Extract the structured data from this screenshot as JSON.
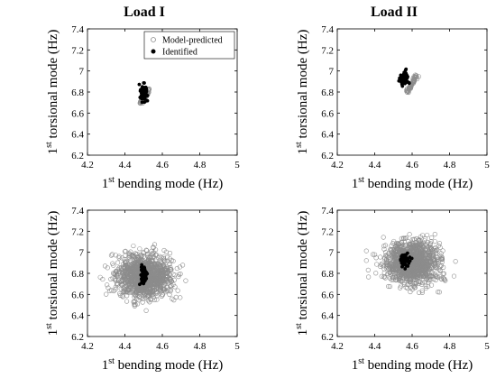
{
  "column_titles": [
    "Load I",
    "Load II"
  ],
  "chart_data": [
    {
      "type": "scatter",
      "title": "Load I",
      "xlabel_main": "1",
      "xlabel_sup": "st",
      "xlabel_rest": " bending mode (Hz)",
      "ylabel_main": "1",
      "ylabel_sup": "st",
      "ylabel_rest": " torsional mode (Hz)",
      "xlim": [
        4.2,
        5
      ],
      "ylim": [
        6.2,
        7.4
      ],
      "xticks": [
        "4.2",
        "4.4",
        "4.6",
        "4.8",
        "5"
      ],
      "yticks": [
        "6.2",
        "6.4",
        "6.6",
        "6.8",
        "7",
        "7.2",
        "7.4"
      ],
      "legend": {
        "position": "top-right",
        "entries": [
          "Model-predicted",
          "Identified"
        ]
      },
      "series": [
        {
          "name": "Model-predicted",
          "kind": "line-cluster",
          "x0": 4.485,
          "y0": 6.7,
          "x1": 4.53,
          "y1": 6.82,
          "count": 60,
          "spread": 0.004
        },
        {
          "name": "Identified",
          "kind": "cluster",
          "cx": 4.5,
          "cy": 6.79,
          "sx": 0.009,
          "sy": 0.04,
          "count": 70
        }
      ]
    },
    {
      "type": "scatter",
      "title": "Load II",
      "xlabel_main": "1",
      "xlabel_sup": "st",
      "xlabel_rest": " bending mode (Hz)",
      "ylabel_main": "1",
      "ylabel_sup": "st",
      "ylabel_rest": " torsional mode (Hz)",
      "xlim": [
        4.2,
        5
      ],
      "ylim": [
        6.2,
        7.4
      ],
      "xticks": [
        "4.2",
        "4.4",
        "4.6",
        "4.8",
        "5"
      ],
      "yticks": [
        "6.2",
        "6.4",
        "6.6",
        "6.8",
        "7",
        "7.2",
        "7.4"
      ],
      "series": [
        {
          "name": "Model-predicted",
          "kind": "line-cluster",
          "x0": 4.575,
          "y0": 6.8,
          "x1": 4.625,
          "y1": 6.96,
          "count": 60,
          "spread": 0.004
        },
        {
          "name": "Identified",
          "kind": "cluster",
          "cx": 4.56,
          "cy": 6.93,
          "sx": 0.012,
          "sy": 0.03,
          "count": 70
        }
      ]
    },
    {
      "type": "scatter",
      "xlabel_main": "1",
      "xlabel_sup": "st",
      "xlabel_rest": " bending mode (Hz)",
      "ylabel_main": "1",
      "ylabel_sup": "st",
      "ylabel_rest": " torsional mode (Hz)",
      "xlim": [
        4.2,
        5
      ],
      "ylim": [
        6.2,
        7.4
      ],
      "xticks": [
        "4.2",
        "4.4",
        "4.6",
        "4.8",
        "5"
      ],
      "yticks": [
        "6.2",
        "6.4",
        "6.6",
        "6.8",
        "7",
        "7.2",
        "7.4"
      ],
      "series": [
        {
          "name": "Model-predicted",
          "kind": "cluster",
          "cx": 4.5,
          "cy": 6.77,
          "sx": 0.075,
          "sy": 0.1,
          "count": 1300
        },
        {
          "name": "Identified",
          "kind": "cluster",
          "cx": 4.5,
          "cy": 6.79,
          "sx": 0.009,
          "sy": 0.04,
          "count": 70
        }
      ]
    },
    {
      "type": "scatter",
      "xlabel_main": "1",
      "xlabel_sup": "st",
      "xlabel_rest": " bending mode (Hz)",
      "ylabel_main": "1",
      "ylabel_sup": "st",
      "ylabel_rest": " torsional mode (Hz)",
      "xlim": [
        4.2,
        5
      ],
      "ylim": [
        6.2,
        7.4
      ],
      "xticks": [
        "4.2",
        "4.4",
        "4.6",
        "4.8",
        "5"
      ],
      "yticks": [
        "6.2",
        "6.4",
        "6.6",
        "6.8",
        "7",
        "7.2",
        "7.4"
      ],
      "series": [
        {
          "name": "Model-predicted",
          "kind": "cluster",
          "cx": 4.6,
          "cy": 6.9,
          "sx": 0.07,
          "sy": 0.1,
          "count": 1300
        },
        {
          "name": "Identified",
          "kind": "cluster",
          "cx": 4.56,
          "cy": 6.93,
          "sx": 0.012,
          "sy": 0.03,
          "count": 70
        }
      ]
    }
  ],
  "colors": {
    "predicted": "#8c8c8c",
    "identified": "#000000"
  }
}
